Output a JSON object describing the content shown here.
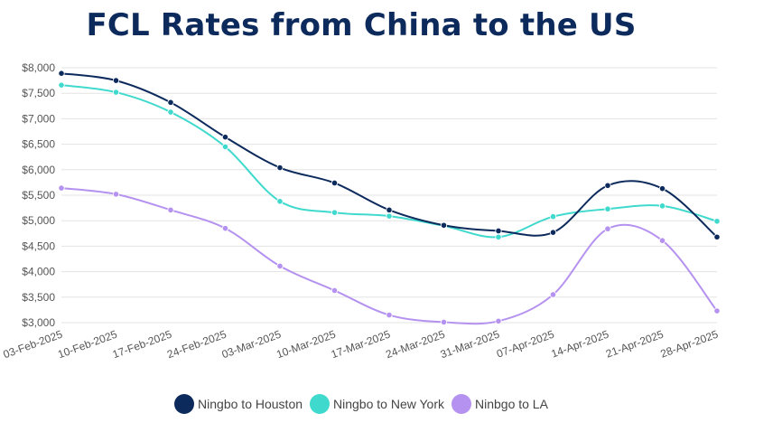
{
  "chart_data": {
    "type": "line",
    "title": "FCL Rates from China to the US",
    "xlabel": "",
    "ylabel": "",
    "ylim": [
      3000,
      8000
    ],
    "ytick_step": 500,
    "ytick_prefix": "$",
    "categories": [
      "03-Feb-2025",
      "10-Feb-2025",
      "17-Feb-2025",
      "24-Feb-2025",
      "03-Mar-2025",
      "10-Mar-2025",
      "17-Mar-2025",
      "24-Mar-2025",
      "31-Mar-2025",
      "07-Apr-2025",
      "14-Apr-2025",
      "21-Apr-2025",
      "28-Apr-2025"
    ],
    "series": [
      {
        "name": "Ningbo to Houston",
        "color": "#0d2a5c",
        "values": [
          7890,
          7750,
          7320,
          6640,
          6040,
          5740,
          5210,
          4910,
          4800,
          4770,
          5690,
          5630,
          4680
        ]
      },
      {
        "name": "Ningbo to New York",
        "color": "#3fd9cd",
        "values": [
          7660,
          7520,
          7130,
          6450,
          5380,
          5160,
          5090,
          4900,
          4680,
          5080,
          5230,
          5290,
          4990
        ]
      },
      {
        "name": "Ninbgo to LA",
        "color": "#b592f0",
        "values": [
          5640,
          5520,
          5210,
          4850,
          4110,
          3630,
          3150,
          3010,
          3030,
          3550,
          4840,
          4610,
          3230
        ]
      }
    ],
    "legend_position": "bottom"
  }
}
